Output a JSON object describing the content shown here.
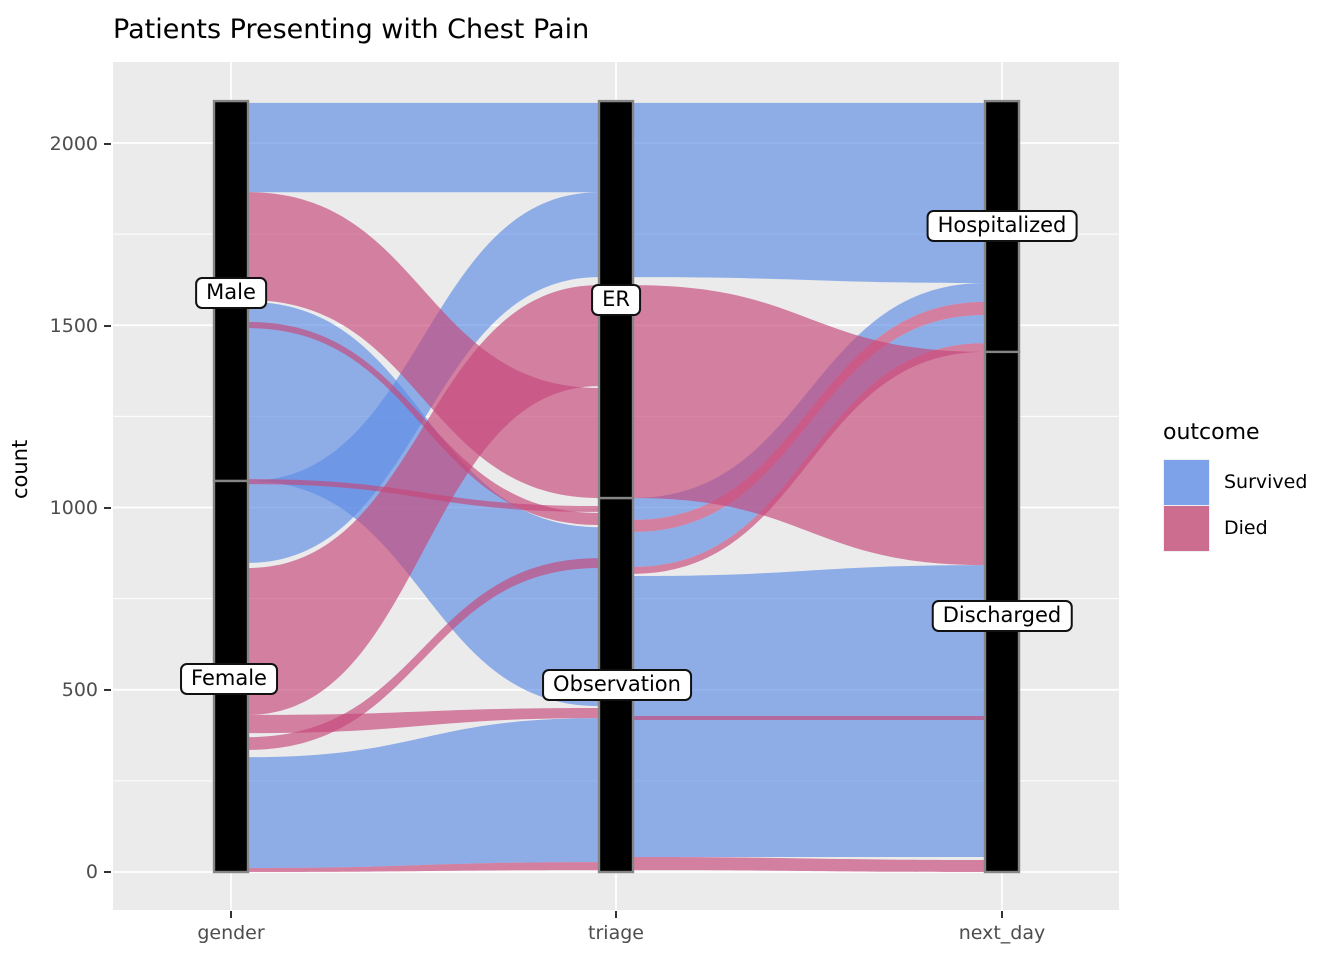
{
  "title": "Patients Presenting with Chest Pain",
  "y_axis_title": "count",
  "legend": {
    "title": "outcome",
    "items": [
      {
        "label": "Survived",
        "color": "#7EA2E9"
      },
      {
        "label": "Died",
        "color": "#CC6C8F"
      }
    ]
  },
  "colors": {
    "survived_flow": "#5E8DE5",
    "died_flow": "#C64879",
    "flow_alpha": 0.66,
    "stratum_fill": "#000000",
    "stratum_stroke": "#858585",
    "panel_bg": "#EBEBEB",
    "gridline": "#FFFFFF"
  },
  "chart_data": {
    "type": "alluvial",
    "title": "Patients Presenting with Chest Pain",
    "ylabel": "count",
    "ylim": [
      0,
      2115
    ],
    "grid": "on",
    "legend_position": "right",
    "note": "counts estimated from pixel positions",
    "y_axis": {
      "ticks": [
        {
          "label": "0",
          "value": 0
        },
        {
          "label": "500",
          "value": 500
        },
        {
          "label": "1000",
          "value": 1000
        },
        {
          "label": "1500",
          "value": 1500
        },
        {
          "label": "2000",
          "value": 2000
        }
      ],
      "minor": [
        250,
        750,
        1250,
        1750
      ]
    },
    "axes": [
      {
        "id": "gender",
        "label": "gender",
        "strata": [
          {
            "label": "Female",
            "c0": 0,
            "c1": 1073
          },
          {
            "label": "Male",
            "c0": 1073,
            "c1": 2115
          }
        ]
      },
      {
        "id": "triage",
        "label": "triage",
        "strata": [
          {
            "label": "Observation",
            "c0": 0,
            "c1": 1026
          },
          {
            "label": "ER",
            "c0": 1026,
            "c1": 2115
          }
        ]
      },
      {
        "id": "next_day",
        "label": "next_day",
        "strata": [
          {
            "label": "Discharged",
            "c0": 0,
            "c1": 1427
          },
          {
            "label": "Hospitalized",
            "c0": 1427,
            "c1": 2115
          }
        ]
      }
    ],
    "flows": [
      {
        "outcome": "Survived",
        "from": "gender",
        "to": "triage",
        "from_range": [
          1865,
          2110
        ],
        "to_range": [
          1865,
          2110
        ],
        "n": 245
      },
      {
        "outcome": "Survived",
        "from": "gender",
        "to": "triage",
        "from_range": [
          1073,
          1564
        ],
        "to_range": [
          455,
          946
        ],
        "n": 490
      },
      {
        "outcome": "Survived",
        "from": "gender",
        "to": "triage",
        "from_range": [
          11,
          315
        ],
        "to_range": [
          27,
          422
        ],
        "n": 305
      },
      {
        "outcome": "Survived",
        "from": "triage",
        "to": "next_day",
        "from_range": [
          1632,
          2110
        ],
        "to_range": [
          1616,
          2110
        ],
        "n": 480
      },
      {
        "outcome": "Survived",
        "from": "triage",
        "to": "next_day",
        "from_range": [
          41,
          812
        ],
        "to_range": [
          41,
          842
        ],
        "n": 790
      },
      {
        "outcome": "Survived",
        "from": "gender",
        "to": "triage",
        "from_range": [
          848,
          1073
        ],
        "to_range": [
          1632,
          1865
        ],
        "n": 225
      },
      {
        "outcome": "Survived",
        "from": "triage",
        "to": "next_day",
        "from_range": [
          966,
          1026
        ],
        "to_range": [
          1564,
          1616
        ],
        "n": 55
      },
      {
        "outcome": "Survived",
        "from": "triage",
        "to": "next_day",
        "from_range": [
          837,
          933
        ],
        "to_range": [
          1451,
          1528
        ],
        "n": 90
      },
      {
        "outcome": "Died",
        "from": "gender",
        "to": "triage",
        "from_range": [
          1569,
          1865
        ],
        "to_range": [
          1026,
          1328
        ],
        "n": 300
      },
      {
        "outcome": "Died",
        "from": "gender",
        "to": "triage",
        "from_range": [
          431,
          834
        ],
        "to_range": [
          1333,
          1610
        ],
        "n": 290
      },
      {
        "outcome": "Died",
        "from": "gender",
        "to": "triage",
        "from_range": [
          381,
          431
        ],
        "to_range": [
          422,
          450
        ],
        "n": 40
      },
      {
        "outcome": "Died",
        "from": "triage",
        "to": "next_day",
        "from_range": [
          1026,
          1610
        ],
        "to_range": [
          842,
          1427
        ],
        "n": 585
      },
      {
        "outcome": "Died",
        "from": "gender",
        "to": "triage",
        "from_range": [
          1492,
          1509
        ],
        "to_range": [
          952,
          985
        ],
        "n": 20
      },
      {
        "outcome": "Died",
        "from": "gender",
        "to": "triage",
        "from_range": [
          1064,
          1078
        ],
        "to_range": [
          988,
          1004
        ],
        "n": 14
      },
      {
        "outcome": "Died",
        "from": "gender",
        "to": "triage",
        "from_range": [
          335,
          370
        ],
        "to_range": [
          834,
          861
        ],
        "n": 30
      },
      {
        "outcome": "Died",
        "from": "triage",
        "to": "next_day",
        "from_range": [
          933,
          966
        ],
        "to_range": [
          1528,
          1564
        ],
        "n": 35
      },
      {
        "outcome": "Died",
        "from": "triage",
        "to": "next_day",
        "from_range": [
          818,
          837
        ],
        "to_range": [
          1427,
          1451
        ],
        "n": 22
      },
      {
        "outcome": "Died",
        "from": "triage",
        "to": "next_day",
        "from_range": [
          417,
          428
        ],
        "to_range": [
          417,
          428
        ],
        "n": 10
      },
      {
        "outcome": "Died",
        "from": "gender",
        "to": "triage",
        "from_range": [
          0,
          11
        ],
        "to_range": [
          5,
          27
        ],
        "n": 11
      },
      {
        "outcome": "Died",
        "from": "triage",
        "to": "next_day",
        "from_range": [
          5,
          41
        ],
        "to_range": [
          0,
          33
        ],
        "n": 33
      }
    ]
  }
}
